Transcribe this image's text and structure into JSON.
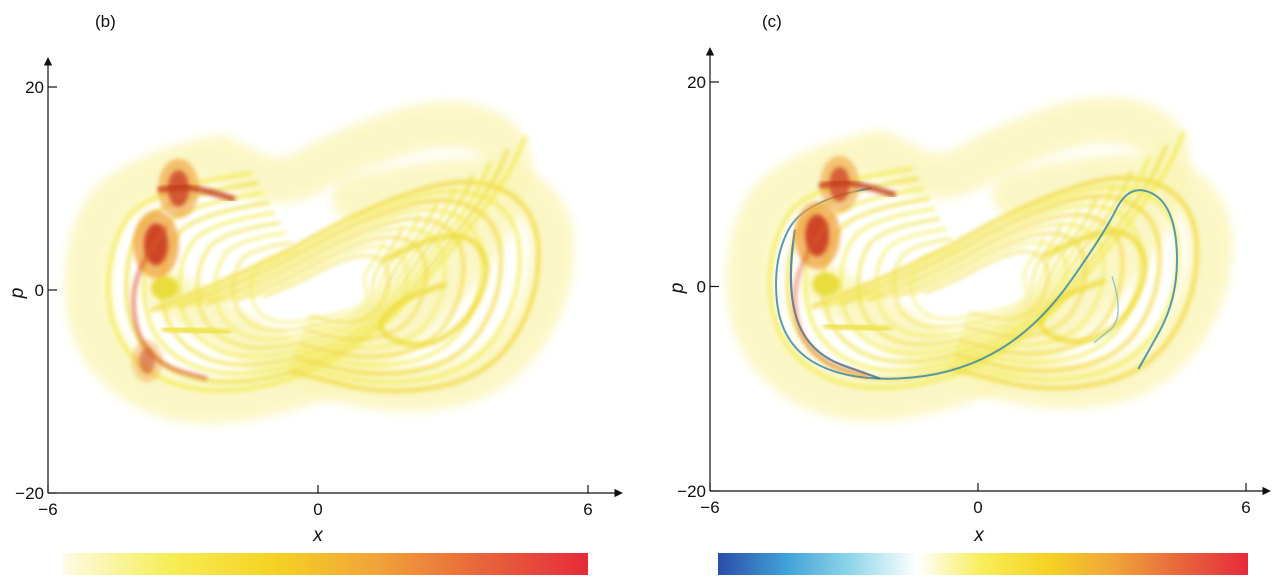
{
  "chart_data": [
    {
      "type": "heatmap",
      "panel_label": "(b)",
      "xlabel": "x",
      "ylabel": "p",
      "xlim": [
        -6,
        6
      ],
      "ylim": [
        -20,
        20
      ],
      "x_ticks": [
        -6,
        0,
        6
      ],
      "x_tick_labels": [
        "−6",
        "0",
        "6"
      ],
      "y_ticks": [
        -20,
        0,
        20
      ],
      "y_tick_labels": [
        "−20",
        "0",
        "20"
      ],
      "grid": false,
      "colorbar": {
        "position": "bottom",
        "stops": [
          "#fdfbe6",
          "#f6ee58",
          "#f5d223",
          "#f0a33a",
          "#e8643c",
          "#e52b3a"
        ]
      },
      "description_features": {
        "background_color": "#f3ec5c",
        "hot_spots": [
          {
            "x": -3.6,
            "p": 4.5,
            "intensity": 1.0
          },
          {
            "x": -3.1,
            "p": 10.0,
            "intensity": 0.85
          },
          {
            "x": -3.8,
            "p": -7.0,
            "intensity": 0.55
          }
        ],
        "blue_negative_regions": false
      }
    },
    {
      "type": "heatmap",
      "panel_label": "(c)",
      "xlabel": "x",
      "ylabel": "p",
      "xlim": [
        -6,
        6
      ],
      "ylim": [
        -20,
        20
      ],
      "x_ticks": [
        -6,
        0,
        6
      ],
      "x_tick_labels": [
        "−6",
        "0",
        "6"
      ],
      "y_ticks": [
        -20,
        0,
        20
      ],
      "y_tick_labels": [
        "−20",
        "0",
        "20"
      ],
      "grid": false,
      "colorbar": {
        "position": "bottom",
        "stops": [
          "#2b4da8",
          "#3fa0d6",
          "#8fd7ea",
          "#ffffff",
          "#f6ee58",
          "#f5d223",
          "#f0a33a",
          "#e8643c",
          "#e52b3a"
        ]
      },
      "description_features": {
        "background_color": "#f3ec5c",
        "hot_spots": [
          {
            "x": -3.6,
            "p": 5.0,
            "intensity": 1.0
          },
          {
            "x": -3.1,
            "p": 10.0,
            "intensity": 0.8
          }
        ],
        "blue_negative_regions": true
      }
    }
  ]
}
